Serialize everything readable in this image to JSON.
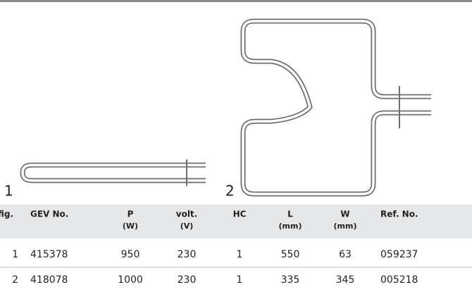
{
  "figures": [
    {
      "label": "1"
    },
    {
      "label": "2"
    }
  ],
  "table": {
    "header": [
      [
        "fig."
      ],
      [
        "GEV No."
      ],
      [
        "P",
        "(W)"
      ],
      [
        "volt.",
        "(V)"
      ],
      [
        "HC"
      ],
      [
        "L",
        "(mm)"
      ],
      [
        "W",
        "(mm)"
      ],
      [
        "Ref. No."
      ]
    ],
    "rows": [
      [
        "1",
        "415378",
        "950",
        "230",
        "1",
        "550",
        "63",
        "059237"
      ],
      [
        "2",
        "418078",
        "1000",
        "230",
        "1",
        "335",
        "345",
        "005218"
      ]
    ]
  }
}
